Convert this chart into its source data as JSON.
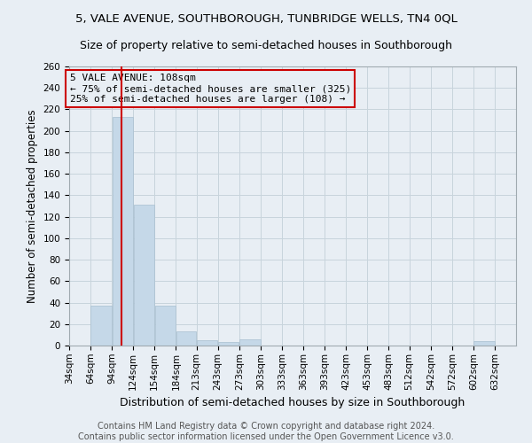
{
  "title": "5, VALE AVENUE, SOUTHBOROUGH, TUNBRIDGE WELLS, TN4 0QL",
  "subtitle": "Size of property relative to semi-detached houses in Southborough",
  "xlabel": "Distribution of semi-detached houses by size in Southborough",
  "ylabel": "Number of semi-detached properties",
  "footer1": "Contains HM Land Registry data © Crown copyright and database right 2024.",
  "footer2": "Contains public sector information licensed under the Open Government Licence v3.0.",
  "annotation_line1": "5 VALE AVENUE: 108sqm",
  "annotation_line2": "← 75% of semi-detached houses are smaller (325)",
  "annotation_line3": "25% of semi-detached houses are larger (108) →",
  "property_size": 108,
  "categories": [
    "34sqm",
    "64sqm",
    "94sqm",
    "124sqm",
    "154sqm",
    "184sqm",
    "213sqm",
    "243sqm",
    "273sqm",
    "303sqm",
    "333sqm",
    "363sqm",
    "393sqm",
    "423sqm",
    "453sqm",
    "483sqm",
    "512sqm",
    "542sqm",
    "572sqm",
    "602sqm",
    "632sqm"
  ],
  "bin_edges": [
    34,
    64,
    94,
    124,
    154,
    184,
    213,
    243,
    273,
    303,
    333,
    363,
    393,
    423,
    453,
    483,
    512,
    542,
    572,
    602,
    632,
    662
  ],
  "values": [
    0,
    37,
    213,
    131,
    37,
    13,
    5,
    3,
    6,
    0,
    0,
    0,
    0,
    0,
    0,
    0,
    0,
    0,
    0,
    4,
    0
  ],
  "bar_color": "#c5d8e8",
  "bar_edge_color": "#a8bfcf",
  "red_line_x": 108,
  "red_line_color": "#cc0000",
  "annotation_box_color": "#cc0000",
  "ylim": [
    0,
    260
  ],
  "yticks": [
    0,
    20,
    40,
    60,
    80,
    100,
    120,
    140,
    160,
    180,
    200,
    220,
    240,
    260
  ],
  "grid_color": "#c8d4dc",
  "title_fontsize": 9.5,
  "subtitle_fontsize": 9,
  "axis_label_fontsize": 8.5,
  "tick_fontsize": 7.5,
  "footer_fontsize": 7,
  "annotation_fontsize": 8,
  "background_color": "#e8eef4"
}
